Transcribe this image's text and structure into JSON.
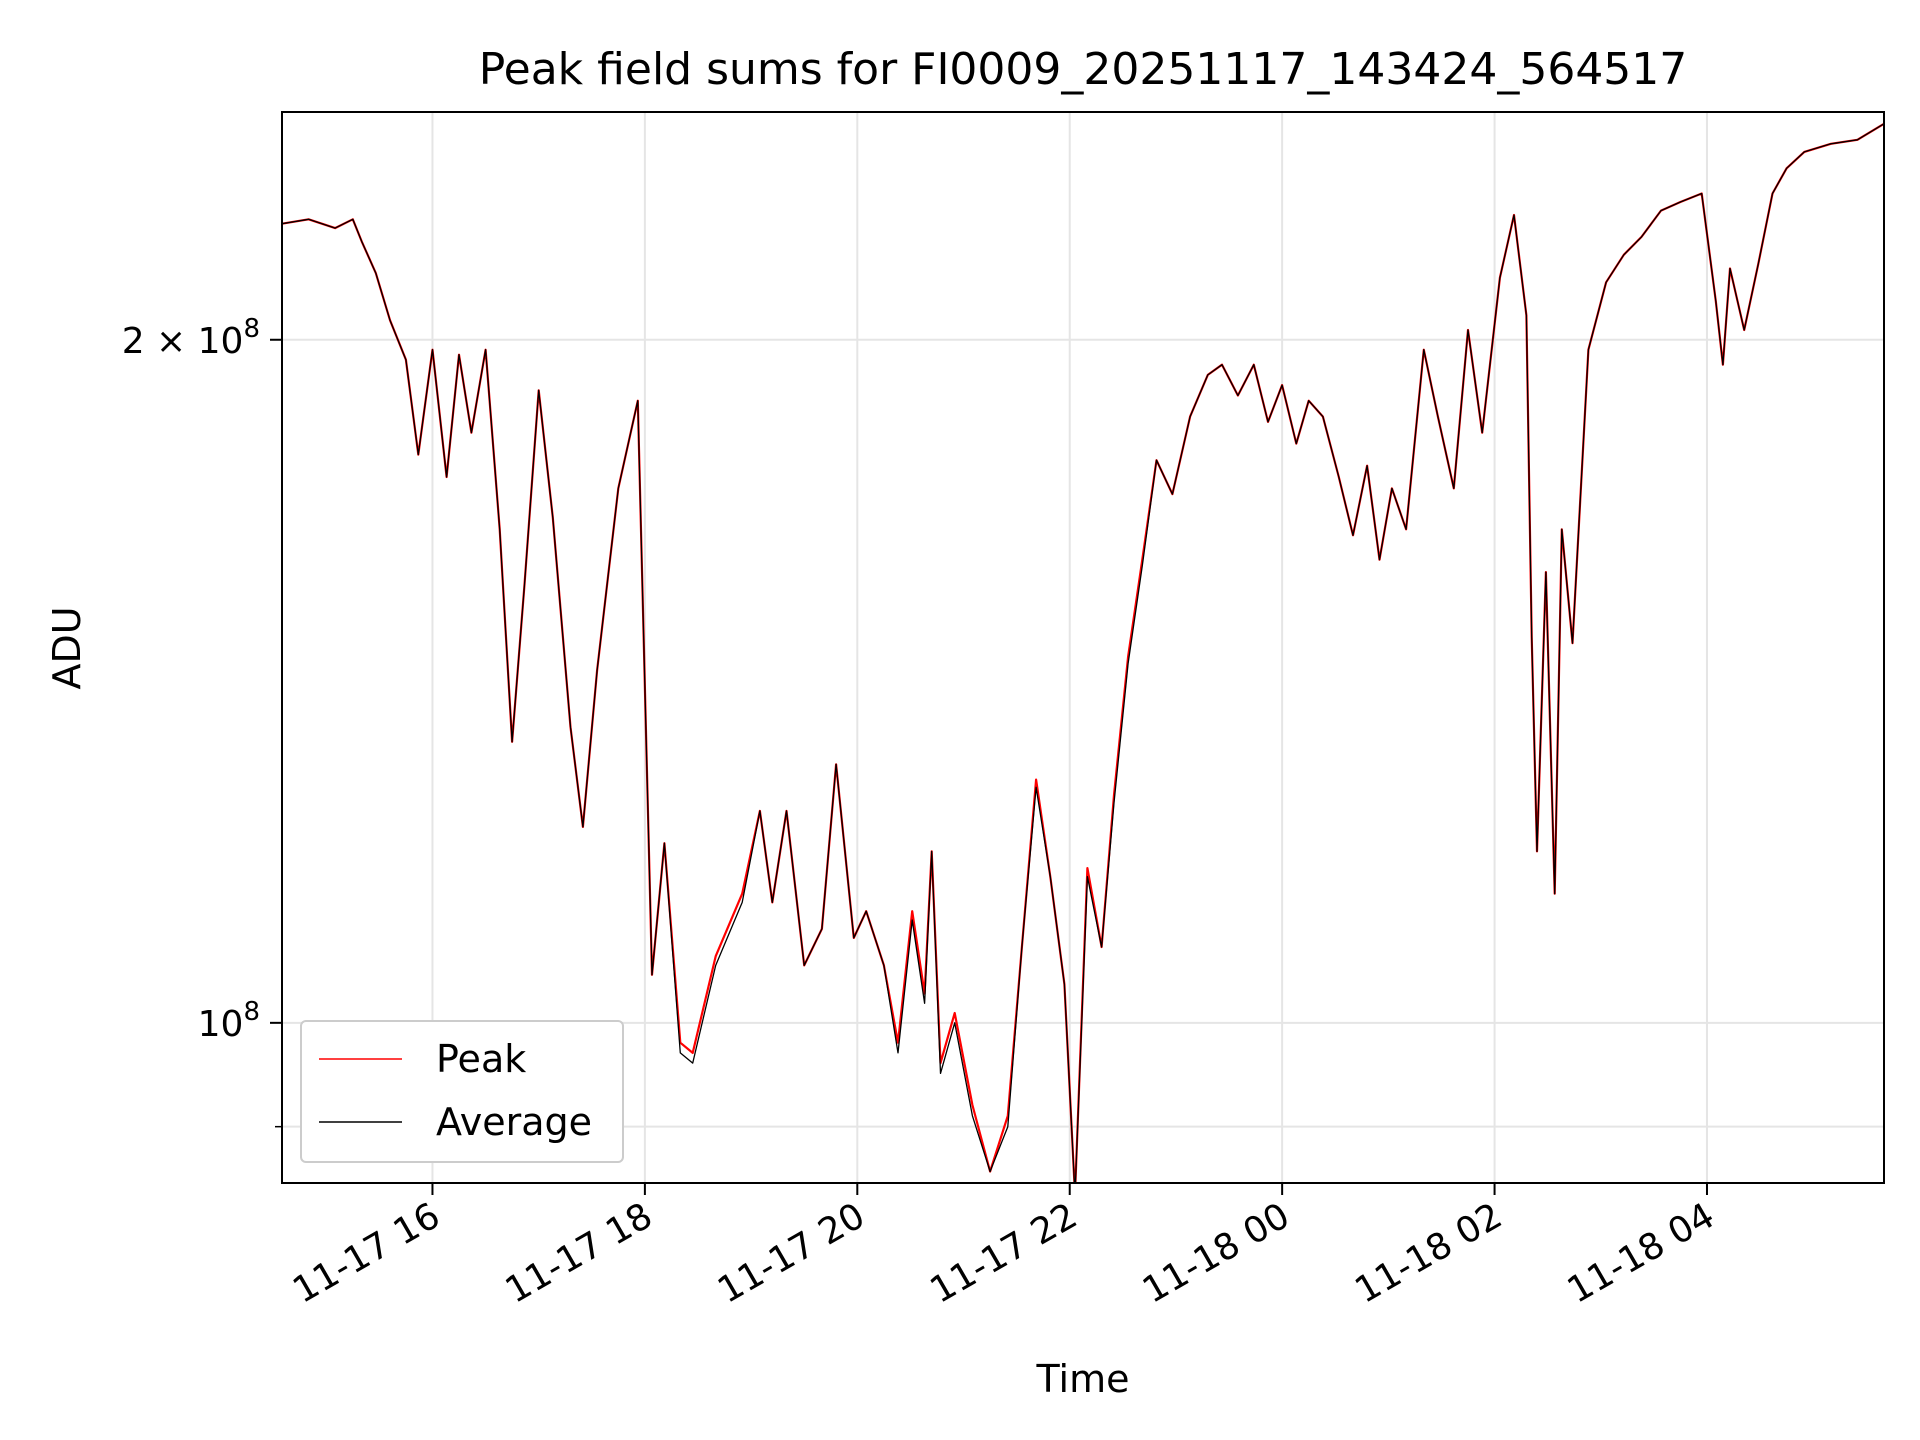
{
  "chart_data": {
    "type": "line",
    "title": "Peak field sums for FI0009_20251117_143424_564517",
    "xlabel": "Time",
    "ylabel": "ADU",
    "y_scale": "log",
    "ylim": [
      85000000,
      252000000
    ],
    "xlim": [
      "2025-11-17 14:35",
      "2025-11-18 05:40"
    ],
    "grid": true,
    "legend_placement": "lower-left",
    "x_ticks": [
      {
        "t": "2025-11-17 16:00",
        "label": "11-17 16"
      },
      {
        "t": "2025-11-17 18:00",
        "label": "11-17 18"
      },
      {
        "t": "2025-11-17 20:00",
        "label": "11-17 20"
      },
      {
        "t": "2025-11-17 22:00",
        "label": "11-17 22"
      },
      {
        "t": "2025-11-18 00:00",
        "label": "11-18 00"
      },
      {
        "t": "2025-11-18 02:00",
        "label": "11-18 02"
      },
      {
        "t": "2025-11-18 04:00",
        "label": "11-18 04"
      }
    ],
    "y_ticks": [
      {
        "value": 200000000,
        "mantissa": "2",
        "times": "×",
        "base": "10",
        "exp": "8"
      },
      {
        "value": 100000000,
        "mantissa": "",
        "times": "",
        "base": "10",
        "exp": "8"
      }
    ],
    "y_minor_ticks": [
      90000000
    ],
    "series": [
      {
        "name": "Peak",
        "color": "#ff0000",
        "data": [
          [
            "2025-11-17 14:35",
            225000000.0
          ],
          [
            "2025-11-17 14:50",
            226000000.0
          ],
          [
            "2025-11-17 15:05",
            224000000.0
          ],
          [
            "2025-11-17 15:15",
            226000000.0
          ],
          [
            "2025-11-17 15:20",
            221000000.0
          ],
          [
            "2025-11-17 15:28",
            214000000.0
          ],
          [
            "2025-11-17 15:36",
            204000000.0
          ],
          [
            "2025-11-17 15:45",
            196000000.0
          ],
          [
            "2025-11-17 15:52",
            178000000.0
          ],
          [
            "2025-11-17 16:00",
            198000000.0
          ],
          [
            "2025-11-17 16:08",
            174000000.0
          ],
          [
            "2025-11-17 16:15",
            197000000.0
          ],
          [
            "2025-11-17 16:22",
            182000000.0
          ],
          [
            "2025-11-17 16:30",
            198000000.0
          ],
          [
            "2025-11-17 16:38",
            165000000.0
          ],
          [
            "2025-11-17 16:45",
            133000000.0
          ],
          [
            "2025-11-17 16:52",
            156000000.0
          ],
          [
            "2025-11-17 17:00",
            190000000.0
          ],
          [
            "2025-11-17 17:08",
            167000000.0
          ],
          [
            "2025-11-17 17:18",
            135000000.0
          ],
          [
            "2025-11-17 17:25",
            122000000.0
          ],
          [
            "2025-11-17 17:33",
            143000000.0
          ],
          [
            "2025-11-17 17:45",
            172000000.0
          ],
          [
            "2025-11-17 17:56",
            188000000.0
          ],
          [
            "2025-11-17 18:04",
            105000000.0
          ],
          [
            "2025-11-17 18:11",
            120000000.0
          ],
          [
            "2025-11-17 18:20",
            98000000.0
          ],
          [
            "2025-11-17 18:27",
            97000000.0
          ],
          [
            "2025-11-17 18:40",
            107000000.0
          ],
          [
            "2025-11-17 18:55",
            114000000.0
          ],
          [
            "2025-11-17 19:05",
            124000000.0
          ],
          [
            "2025-11-17 19:12",
            113000000.0
          ],
          [
            "2025-11-17 19:20",
            124000000.0
          ],
          [
            "2025-11-17 19:30",
            106000000.0
          ],
          [
            "2025-11-17 19:40",
            110000000.0
          ],
          [
            "2025-11-17 19:48",
            130000000.0
          ],
          [
            "2025-11-17 19:58",
            109000000.0
          ],
          [
            "2025-11-17 20:05",
            112000000.0
          ],
          [
            "2025-11-17 20:15",
            106000000.0
          ],
          [
            "2025-11-17 20:23",
            98000000.0
          ],
          [
            "2025-11-17 20:31",
            112000000.0
          ],
          [
            "2025-11-17 20:38",
            103000000.0
          ],
          [
            "2025-11-17 20:42",
            119000000.0
          ],
          [
            "2025-11-17 20:47",
            96000000.0
          ],
          [
            "2025-11-17 20:55",
            101000000.0
          ],
          [
            "2025-11-17 21:05",
            92000000.0
          ],
          [
            "2025-11-17 21:15",
            86000000.0
          ],
          [
            "2025-11-17 21:25",
            91000000.0
          ],
          [
            "2025-11-17 21:33",
            108000000.0
          ],
          [
            "2025-11-17 21:41",
            128000000.0
          ],
          [
            "2025-11-17 21:49",
            116000000.0
          ],
          [
            "2025-11-17 21:57",
            104000000.0
          ],
          [
            "2025-11-17 22:03",
            84000000.0
          ],
          [
            "2025-11-17 22:10",
            117000000.0
          ],
          [
            "2025-11-17 22:18",
            108000000.0
          ],
          [
            "2025-11-17 22:25",
            126000000.0
          ],
          [
            "2025-11-17 22:33",
            145000000.0
          ],
          [
            "2025-11-17 22:41",
            160000000.0
          ],
          [
            "2025-11-17 22:49",
            177000000.0
          ],
          [
            "2025-11-17 22:58",
            171000000.0
          ],
          [
            "2025-11-17 23:08",
            185000000.0
          ],
          [
            "2025-11-17 23:18",
            193000000.0
          ],
          [
            "2025-11-17 23:26",
            195000000.0
          ],
          [
            "2025-11-17 23:35",
            189000000.0
          ],
          [
            "2025-11-17 23:44",
            195000000.0
          ],
          [
            "2025-11-17 23:52",
            184000000.0
          ],
          [
            "2025-11-18 00:00",
            191000000.0
          ],
          [
            "2025-11-18 00:08",
            180000000.0
          ],
          [
            "2025-11-18 00:15",
            188000000.0
          ],
          [
            "2025-11-18 00:23",
            185000000.0
          ],
          [
            "2025-11-18 00:32",
            174000000.0
          ],
          [
            "2025-11-18 00:40",
            164000000.0
          ],
          [
            "2025-11-18 00:48",
            176000000.0
          ],
          [
            "2025-11-18 00:55",
            160000000.0
          ],
          [
            "2025-11-18 01:02",
            172000000.0
          ],
          [
            "2025-11-18 01:10",
            165000000.0
          ],
          [
            "2025-11-18 01:20",
            198000000.0
          ],
          [
            "2025-11-18 01:28",
            185000000.0
          ],
          [
            "2025-11-18 01:37",
            172000000.0
          ],
          [
            "2025-11-18 01:45",
            202000000.0
          ],
          [
            "2025-11-18 01:53",
            182000000.0
          ],
          [
            "2025-11-18 02:03",
            213000000.0
          ],
          [
            "2025-11-18 02:11",
            227000000.0
          ],
          [
            "2025-11-18 02:18",
            205000000.0
          ],
          [
            "2025-11-18 02:21",
            148000000.0
          ],
          [
            "2025-11-18 02:24",
            119000000.0
          ],
          [
            "2025-11-18 02:29",
            158000000.0
          ],
          [
            "2025-11-18 02:34",
            114000000.0
          ],
          [
            "2025-11-18 02:38",
            165000000.0
          ],
          [
            "2025-11-18 02:44",
            147000000.0
          ],
          [
            "2025-11-18 02:53",
            198000000.0
          ],
          [
            "2025-11-18 03:03",
            212000000.0
          ],
          [
            "2025-11-18 03:13",
            218000000.0
          ],
          [
            "2025-11-18 03:23",
            222000000.0
          ],
          [
            "2025-11-18 03:34",
            228000000.0
          ],
          [
            "2025-11-18 03:45",
            230000000.0
          ],
          [
            "2025-11-18 03:57",
            232000000.0
          ],
          [
            "2025-11-18 04:05",
            208000000.0
          ],
          [
            "2025-11-18 04:09",
            195000000.0
          ],
          [
            "2025-11-18 04:13",
            215000000.0
          ],
          [
            "2025-11-18 04:21",
            202000000.0
          ],
          [
            "2025-11-18 04:29",
            216000000.0
          ],
          [
            "2025-11-18 04:37",
            232000000.0
          ],
          [
            "2025-11-18 04:45",
            238000000.0
          ],
          [
            "2025-11-18 04:55",
            242000000.0
          ],
          [
            "2025-11-18 05:10",
            244000000.0
          ],
          [
            "2025-11-18 05:25",
            245000000.0
          ],
          [
            "2025-11-18 05:40",
            249000000.0
          ]
        ]
      },
      {
        "name": "Average",
        "color": "#000000",
        "data": [
          [
            "2025-11-17 14:35",
            225000000.0
          ],
          [
            "2025-11-17 14:50",
            226000000.0
          ],
          [
            "2025-11-17 15:05",
            224000000.0
          ],
          [
            "2025-11-17 15:15",
            226000000.0
          ],
          [
            "2025-11-17 15:20",
            221000000.0
          ],
          [
            "2025-11-17 15:28",
            214000000.0
          ],
          [
            "2025-11-17 15:36",
            204000000.0
          ],
          [
            "2025-11-17 15:45",
            196000000.0
          ],
          [
            "2025-11-17 15:52",
            178000000.0
          ],
          [
            "2025-11-17 16:00",
            198000000.0
          ],
          [
            "2025-11-17 16:08",
            174000000.0
          ],
          [
            "2025-11-17 16:15",
            197000000.0
          ],
          [
            "2025-11-17 16:22",
            182000000.0
          ],
          [
            "2025-11-17 16:30",
            198000000.0
          ],
          [
            "2025-11-17 16:38",
            165000000.0
          ],
          [
            "2025-11-17 16:45",
            133000000.0
          ],
          [
            "2025-11-17 16:52",
            156000000.0
          ],
          [
            "2025-11-17 17:00",
            190000000.0
          ],
          [
            "2025-11-17 17:08",
            167000000.0
          ],
          [
            "2025-11-17 17:18",
            135000000.0
          ],
          [
            "2025-11-17 17:25",
            122000000.0
          ],
          [
            "2025-11-17 17:33",
            143000000.0
          ],
          [
            "2025-11-17 17:45",
            172000000.0
          ],
          [
            "2025-11-17 17:56",
            188000000.0
          ],
          [
            "2025-11-17 18:04",
            105000000.0
          ],
          [
            "2025-11-17 18:11",
            120000000.0
          ],
          [
            "2025-11-17 18:20",
            97000000.0
          ],
          [
            "2025-11-17 18:27",
            96000000.0
          ],
          [
            "2025-11-17 18:40",
            106000000.0
          ],
          [
            "2025-11-17 18:55",
            113000000.0
          ],
          [
            "2025-11-17 19:05",
            124000000.0
          ],
          [
            "2025-11-17 19:12",
            113000000.0
          ],
          [
            "2025-11-17 19:20",
            124000000.0
          ],
          [
            "2025-11-17 19:30",
            106000000.0
          ],
          [
            "2025-11-17 19:40",
            110000000.0
          ],
          [
            "2025-11-17 19:48",
            130000000.0
          ],
          [
            "2025-11-17 19:58",
            109000000.0
          ],
          [
            "2025-11-17 20:05",
            112000000.0
          ],
          [
            "2025-11-17 20:15",
            106000000.0
          ],
          [
            "2025-11-17 20:23",
            97000000.0
          ],
          [
            "2025-11-17 20:31",
            111000000.0
          ],
          [
            "2025-11-17 20:38",
            102000000.0
          ],
          [
            "2025-11-17 20:42",
            119000000.0
          ],
          [
            "2025-11-17 20:47",
            95000000.0
          ],
          [
            "2025-11-17 20:55",
            100000000.0
          ],
          [
            "2025-11-17 21:05",
            91000000.0
          ],
          [
            "2025-11-17 21:15",
            86000000.0
          ],
          [
            "2025-11-17 21:25",
            90000000.0
          ],
          [
            "2025-11-17 21:33",
            108000000.0
          ],
          [
            "2025-11-17 21:41",
            127000000.0
          ],
          [
            "2025-11-17 21:49",
            116000000.0
          ],
          [
            "2025-11-17 21:57",
            104000000.0
          ],
          [
            "2025-11-17 22:03",
            84000000.0
          ],
          [
            "2025-11-17 22:10",
            116000000.0
          ],
          [
            "2025-11-17 22:18",
            108000000.0
          ],
          [
            "2025-11-17 22:25",
            125000000.0
          ],
          [
            "2025-11-17 22:33",
            144000000.0
          ],
          [
            "2025-11-17 22:41",
            159000000.0
          ],
          [
            "2025-11-17 22:49",
            177000000.0
          ],
          [
            "2025-11-17 22:58",
            171000000.0
          ],
          [
            "2025-11-17 23:08",
            185000000.0
          ],
          [
            "2025-11-17 23:18",
            193000000.0
          ],
          [
            "2025-11-17 23:26",
            195000000.0
          ],
          [
            "2025-11-17 23:35",
            189000000.0
          ],
          [
            "2025-11-17 23:44",
            195000000.0
          ],
          [
            "2025-11-17 23:52",
            184000000.0
          ],
          [
            "2025-11-18 00:00",
            191000000.0
          ],
          [
            "2025-11-18 00:08",
            180000000.0
          ],
          [
            "2025-11-18 00:15",
            188000000.0
          ],
          [
            "2025-11-18 00:23",
            185000000.0
          ],
          [
            "2025-11-18 00:32",
            174000000.0
          ],
          [
            "2025-11-18 00:40",
            164000000.0
          ],
          [
            "2025-11-18 00:48",
            176000000.0
          ],
          [
            "2025-11-18 00:55",
            160000000.0
          ],
          [
            "2025-11-18 01:02",
            172000000.0
          ],
          [
            "2025-11-18 01:10",
            165000000.0
          ],
          [
            "2025-11-18 01:20",
            198000000.0
          ],
          [
            "2025-11-18 01:28",
            185000000.0
          ],
          [
            "2025-11-18 01:37",
            172000000.0
          ],
          [
            "2025-11-18 01:45",
            202000000.0
          ],
          [
            "2025-11-18 01:53",
            182000000.0
          ],
          [
            "2025-11-18 02:03",
            213000000.0
          ],
          [
            "2025-11-18 02:11",
            227000000.0
          ],
          [
            "2025-11-18 02:18",
            205000000.0
          ],
          [
            "2025-11-18 02:21",
            148000000.0
          ],
          [
            "2025-11-18 02:24",
            119000000.0
          ],
          [
            "2025-11-18 02:29",
            158000000.0
          ],
          [
            "2025-11-18 02:34",
            114000000.0
          ],
          [
            "2025-11-18 02:38",
            165000000.0
          ],
          [
            "2025-11-18 02:44",
            147000000.0
          ],
          [
            "2025-11-18 02:53",
            198000000.0
          ],
          [
            "2025-11-18 03:03",
            212000000.0
          ],
          [
            "2025-11-18 03:13",
            218000000.0
          ],
          [
            "2025-11-18 03:23",
            222000000.0
          ],
          [
            "2025-11-18 03:34",
            228000000.0
          ],
          [
            "2025-11-18 03:45",
            230000000.0
          ],
          [
            "2025-11-18 03:57",
            232000000.0
          ],
          [
            "2025-11-18 04:05",
            208000000.0
          ],
          [
            "2025-11-18 04:09",
            195000000.0
          ],
          [
            "2025-11-18 04:13",
            215000000.0
          ],
          [
            "2025-11-18 04:21",
            202000000.0
          ],
          [
            "2025-11-18 04:29",
            216000000.0
          ],
          [
            "2025-11-18 04:37",
            232000000.0
          ],
          [
            "2025-11-18 04:45",
            238000000.0
          ],
          [
            "2025-11-18 04:55",
            242000000.0
          ],
          [
            "2025-11-18 05:10",
            244000000.0
          ],
          [
            "2025-11-18 05:25",
            245000000.0
          ],
          [
            "2025-11-18 05:40",
            249000000.0
          ]
        ]
      }
    ]
  }
}
